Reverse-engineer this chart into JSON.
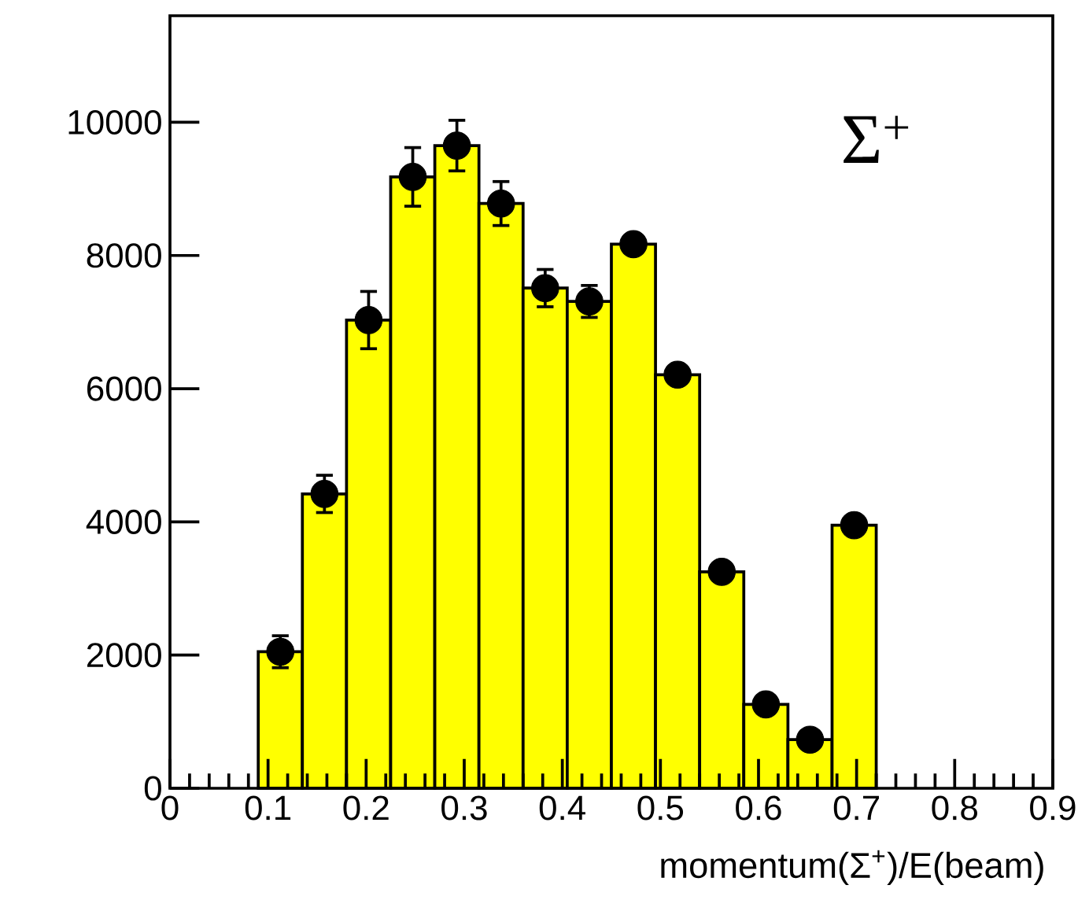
{
  "chart_data": {
    "type": "histogram",
    "xlabel": "momentum(Σ$^{+}$)/E(beam)",
    "annotations": [
      "Σ$^{+}$"
    ],
    "bins": [
      0.09,
      0.135,
      0.18,
      0.225,
      0.27,
      0.315,
      0.36,
      0.405,
      0.45,
      0.495,
      0.54,
      0.585,
      0.63,
      0.675,
      0.72
    ],
    "values": [
      2050,
      4420,
      7030,
      9180,
      9650,
      8780,
      7510,
      7310,
      8170,
      6210,
      3250,
      1260,
      730,
      3950
    ],
    "color": "#ffff00",
    "marker": "circle",
    "series": [
      {
        "type": "scatter",
        "color": "#000000",
        "x": [
          0.1125,
          0.1575,
          0.2025,
          0.2475,
          0.2925,
          0.3375,
          0.3825,
          0.4275,
          0.4725,
          0.5175,
          0.5625,
          0.6075,
          0.6525,
          0.6975
        ],
        "values": [
          2050,
          4420,
          7030,
          9180,
          9650,
          8780,
          7510,
          7310,
          8170,
          6210,
          3250,
          1260,
          730,
          3950
        ],
        "errors": [
          240,
          280,
          430,
          440,
          380,
          330,
          280,
          240,
          null,
          null,
          null,
          null,
          null,
          null
        ]
      }
    ],
    "xlim": [
      0,
      0.9
    ],
    "xticks": [
      0,
      0.1,
      0.2,
      0.3,
      0.4,
      0.5,
      0.6,
      0.7,
      0.8,
      0.9
    ],
    "ylim": [
      0,
      11600
    ],
    "yticks": [
      0,
      2000,
      4000,
      6000,
      8000,
      10000
    ]
  }
}
